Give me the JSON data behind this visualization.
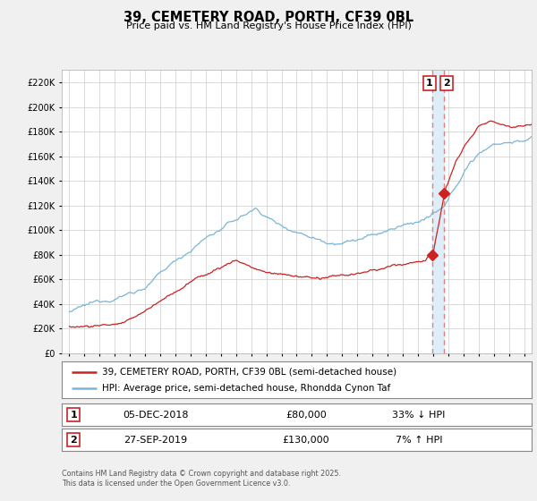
{
  "title": "39, CEMETERY ROAD, PORTH, CF39 0BL",
  "subtitle": "Price paid vs. HM Land Registry's House Price Index (HPI)",
  "legend_line1": "39, CEMETERY ROAD, PORTH, CF39 0BL (semi-detached house)",
  "legend_line2": "HPI: Average price, semi-detached house, Rhondda Cynon Taf",
  "footer": "Contains HM Land Registry data © Crown copyright and database right 2025.\nThis data is licensed under the Open Government Licence v3.0.",
  "hpi_color": "#7ab5d8",
  "price_color": "#cc2222",
  "dashed_line_color": "#e08080",
  "shade_color": "#deeef8",
  "marker1_date": "05-DEC-2018",
  "marker1_price": "£80,000",
  "marker1_hpi": "33% ↓ HPI",
  "marker1_year": 2018.92,
  "marker1_value": 80000,
  "marker2_date": "27-SEP-2019",
  "marker2_price": "£130,000",
  "marker2_hpi": "7% ↑ HPI",
  "marker2_year": 2019.74,
  "marker2_value": 130000,
  "ylim": [
    0,
    230000
  ],
  "yticks": [
    0,
    20000,
    40000,
    60000,
    80000,
    100000,
    120000,
    140000,
    160000,
    180000,
    200000,
    220000
  ],
  "xlim_start": 1994.5,
  "xlim_end": 2025.5,
  "xticks": [
    1995,
    1996,
    1997,
    1998,
    1999,
    2000,
    2001,
    2002,
    2003,
    2004,
    2005,
    2006,
    2007,
    2008,
    2009,
    2010,
    2011,
    2012,
    2013,
    2014,
    2015,
    2016,
    2017,
    2018,
    2019,
    2020,
    2021,
    2022,
    2023,
    2024,
    2025
  ],
  "background_color": "#f0f0f0",
  "plot_bg_color": "#ffffff",
  "grid_color": "#cccccc"
}
